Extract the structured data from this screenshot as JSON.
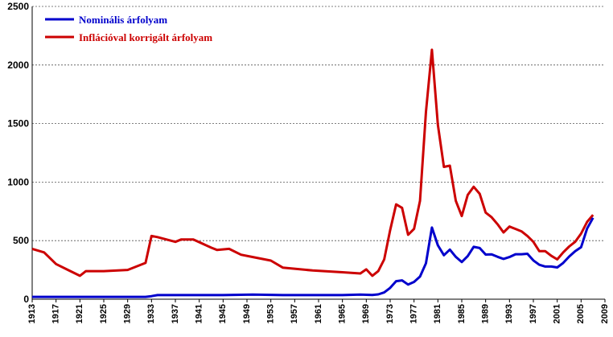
{
  "chart_data": {
    "type": "line",
    "title": "",
    "xlabel": "",
    "ylabel": "",
    "xlim": [
      1913,
      2009
    ],
    "ylim": [
      0,
      2500
    ],
    "grid": true,
    "legend_position": "top-left",
    "y_ticks": [
      0,
      500,
      1000,
      1500,
      2000,
      2500
    ],
    "x_ticks": [
      1913,
      1917,
      1921,
      1925,
      1929,
      1933,
      1937,
      1941,
      1945,
      1949,
      1953,
      1957,
      1961,
      1965,
      1969,
      1973,
      1977,
      1981,
      1985,
      1989,
      1993,
      1997,
      2001,
      2005,
      2009
    ],
    "series": [
      {
        "name": "Nominális árfolyam",
        "color": "#0000cc",
        "x": [
          1913,
          1918,
          1925,
          1932,
          1933,
          1934,
          1940,
          1945,
          1950,
          1955,
          1960,
          1965,
          1968,
          1970,
          1971,
          1972,
          1973,
          1974,
          1975,
          1976,
          1977,
          1978,
          1979,
          1980,
          1981,
          1982,
          1983,
          1984,
          1985,
          1986,
          1987,
          1988,
          1989,
          1990,
          1991,
          1992,
          1993,
          1994,
          1995,
          1996,
          1997,
          1998,
          1999,
          2000,
          2001,
          2002,
          2003,
          2004,
          2005,
          2006,
          2007
        ],
        "y": [
          20,
          20,
          20,
          20,
          26,
          35,
          35,
          35,
          40,
          35,
          35,
          35,
          39,
          36,
          41,
          58,
          97,
          154,
          161,
          125,
          148,
          193,
          307,
          612,
          460,
          376,
          424,
          361,
          317,
          368,
          447,
          437,
          381,
          383,
          362,
          344,
          360,
          384,
          384,
          388,
          331,
          294,
          279,
          279,
          271,
          310,
          364,
          409,
          444,
          603,
          695
        ]
      },
      {
        "name": "Inflációval korrigált árfolyam",
        "color": "#cc0000",
        "x": [
          1913,
          1915,
          1917,
          1919,
          1921,
          1922,
          1925,
          1929,
          1932,
          1933,
          1934,
          1937,
          1938,
          1940,
          1943,
          1944,
          1946,
          1948,
          1950,
          1953,
          1955,
          1960,
          1965,
          1968,
          1969,
          1970,
          1971,
          1972,
          1973,
          1974,
          1975,
          1976,
          1977,
          1978,
          1979,
          1980,
          1981,
          1982,
          1983,
          1984,
          1985,
          1986,
          1987,
          1988,
          1989,
          1990,
          1991,
          1992,
          1993,
          1994,
          1995,
          1996,
          1997,
          1998,
          1999,
          2000,
          2001,
          2002,
          2003,
          2004,
          2005,
          2006,
          2007
        ],
        "y": [
          430,
          400,
          300,
          250,
          200,
          240,
          240,
          250,
          310,
          540,
          530,
          490,
          510,
          510,
          440,
          420,
          430,
          380,
          360,
          330,
          270,
          245,
          230,
          220,
          255,
          200,
          240,
          340,
          590,
          810,
          780,
          550,
          600,
          840,
          1600,
          2130,
          1490,
          1130,
          1140,
          840,
          710,
          890,
          960,
          900,
          740,
          700,
          640,
          570,
          620,
          600,
          580,
          540,
          490,
          410,
          410,
          370,
          340,
          400,
          450,
          490,
          560,
          660,
          720
        ]
      }
    ]
  }
}
